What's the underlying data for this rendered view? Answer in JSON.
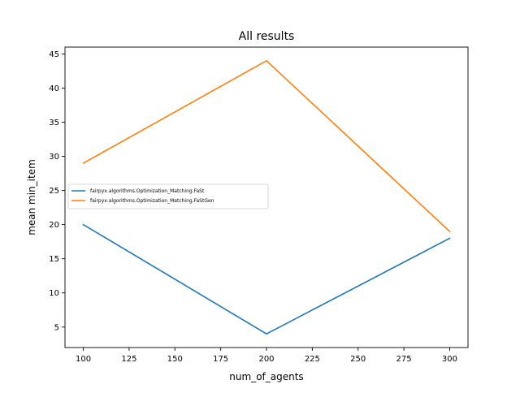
{
  "chart_data": {
    "type": "line",
    "title": "All results",
    "xlabel": "num_of_agents",
    "ylabel": "mean min_item",
    "x": [
      100,
      200,
      300
    ],
    "xlim": [
      90,
      310
    ],
    "ylim": [
      2.0,
      46.0
    ],
    "xticks": [
      100,
      125,
      150,
      175,
      200,
      225,
      250,
      275,
      300
    ],
    "yticks": [
      5,
      10,
      15,
      20,
      25,
      30,
      35,
      40,
      45
    ],
    "series": [
      {
        "name": "fairpyx.algorithms.Optimization_Matching.FaSt",
        "values": [
          20,
          4,
          18
        ],
        "color": "#1f77b4"
      },
      {
        "name": "fairpyx.algorithms.Optimization_Matching.FaStGen",
        "values": [
          29,
          44,
          19
        ],
        "color": "#ff7f0e"
      }
    ],
    "grid": false,
    "legend_position": "center-left"
  }
}
